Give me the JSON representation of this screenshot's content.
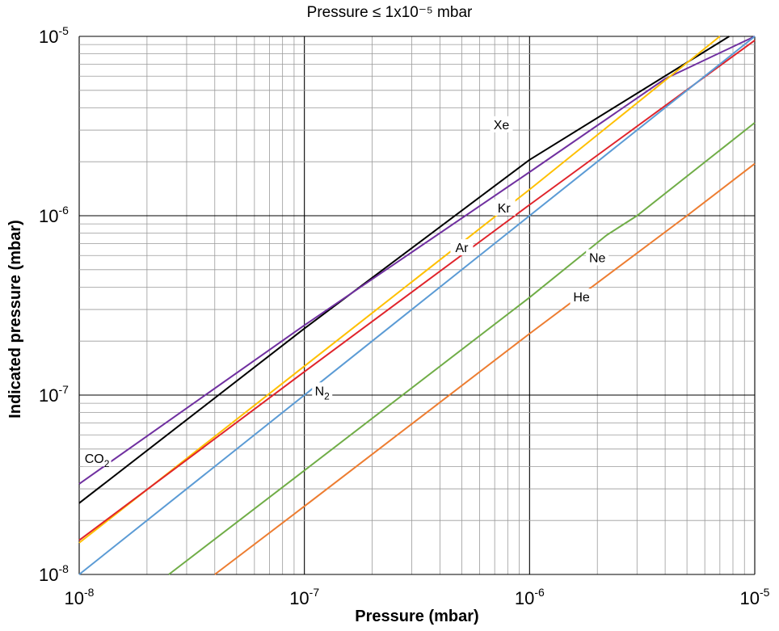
{
  "chart_data": {
    "type": "line",
    "title": "Pressure ≤ 1x10⁻⁵ mbar",
    "xlabel": "Pressure (mbar)",
    "ylabel": "Indicated pressure (mbar)",
    "x_scale": "log",
    "y_scale": "log",
    "xlim": [
      1e-08,
      1e-05
    ],
    "ylim": [
      1e-08,
      1e-05
    ],
    "grid": true,
    "x_ticks": [
      {
        "value": 1e-08,
        "base": "10",
        "exp": "-8"
      },
      {
        "value": 1e-07,
        "base": "10",
        "exp": "-7"
      },
      {
        "value": 1e-06,
        "base": "10",
        "exp": "-6"
      },
      {
        "value": 1e-05,
        "base": "10",
        "exp": "-5"
      }
    ],
    "y_ticks": [
      {
        "value": 1e-08,
        "base": "10",
        "exp": "-8"
      },
      {
        "value": 1e-07,
        "base": "10",
        "exp": "-7"
      },
      {
        "value": 1e-06,
        "base": "10",
        "exp": "-6"
      },
      {
        "value": 1e-05,
        "base": "10",
        "exp": "-5"
      }
    ],
    "series": [
      {
        "name": "Xe",
        "label": "Xe",
        "sub": "",
        "color": "#000000",
        "label_at": [
          7.5e-07,
          3.2e-06
        ],
        "x": [
          1e-08,
          1e-07,
          1e-06,
          7.7e-06
        ],
        "y": [
          2.5e-08,
          2.35e-07,
          2.05e-06,
          1e-05
        ]
      },
      {
        "name": "CO2",
        "label": "CO",
        "sub": "2",
        "color": "#7030a0",
        "label_at": [
          1.2e-08,
          4.4e-08
        ],
        "x": [
          1e-08,
          1e-07,
          1e-06,
          4e-06,
          1e-05
        ],
        "y": [
          3.2e-08,
          2.45e-07,
          1.75e-06,
          5.8e-06,
          1e-05
        ]
      },
      {
        "name": "Kr",
        "label": "Kr",
        "sub": "",
        "color": "#ffc000",
        "label_at": [
          7.7e-07,
          1.1e-06
        ],
        "x": [
          1e-08,
          1e-07,
          1e-06,
          7e-06
        ],
        "y": [
          1.5e-08,
          1.45e-07,
          1.4e-06,
          1e-05
        ]
      },
      {
        "name": "Ar",
        "label": "Ar",
        "sub": "",
        "color": "#e0242b",
        "label_at": [
          5e-07,
          6.6e-07
        ],
        "x": [
          1e-08,
          1e-07,
          1e-06,
          1e-05
        ],
        "y": [
          1.55e-08,
          1.35e-07,
          1.15e-06,
          9.5e-06
        ]
      },
      {
        "name": "N2",
        "label": "N",
        "sub": "2",
        "color": "#5b9bd5",
        "label_at": [
          1.2e-07,
          1.05e-07
        ],
        "x": [
          1e-08,
          1e-07,
          1e-06,
          1e-05
        ],
        "y": [
          1e-08,
          1e-07,
          1e-06,
          1e-05
        ]
      },
      {
        "name": "Ne",
        "label": "Ne",
        "sub": "",
        "color": "#70ad47",
        "label_at": [
          2e-06,
          5.8e-07
        ],
        "x": [
          2.5e-08,
          1e-07,
          1e-06,
          2.2e-06,
          3e-06,
          1e-05
        ],
        "y": [
          1e-08,
          3.8e-08,
          3.5e-07,
          7.8e-07,
          1e-06,
          3.3e-06
        ]
      },
      {
        "name": "He",
        "label": "He",
        "sub": "",
        "color": "#ed7d31",
        "label_at": [
          1.7e-06,
          3.5e-07
        ],
        "x": [
          4e-08,
          1e-07,
          1e-06,
          5e-06,
          1e-05
        ],
        "y": [
          1e-08,
          2.4e-08,
          2.2e-07,
          1e-06,
          1.95e-06
        ]
      }
    ]
  }
}
